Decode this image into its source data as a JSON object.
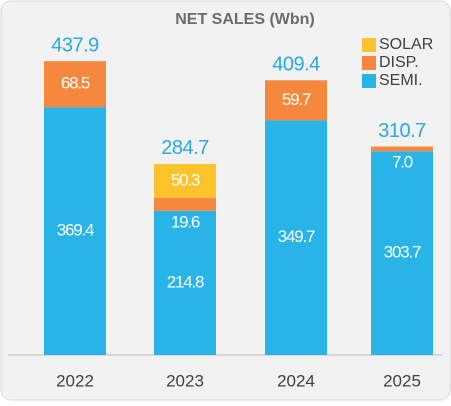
{
  "chart_data": {
    "type": "stacked_bar",
    "title": "NET SALES  (Wbn)",
    "categories": [
      "2022",
      "2023",
      "2024",
      "2025"
    ],
    "series": [
      {
        "name": "SEMI.",
        "color": "#29b4e8",
        "values": [
          369.4,
          214.8,
          349.7,
          303.7
        ]
      },
      {
        "name": "DISP.",
        "color": "#f5883d",
        "values": [
          68.5,
          19.6,
          59.7,
          7.0
        ],
        "value_labels": [
          "68.5",
          "19.6",
          "59.7",
          "7.0"
        ]
      },
      {
        "name": "SOLAR",
        "color": "#fcc42a",
        "values": [
          null,
          50.3,
          null,
          null
        ]
      }
    ],
    "totals": [
      437.9,
      284.7,
      409.4,
      310.7
    ],
    "legend": "top-right"
  }
}
